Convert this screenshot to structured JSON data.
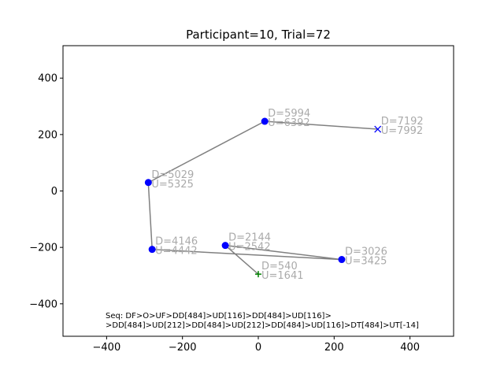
{
  "chart_data": {
    "type": "line",
    "title": "Participant=10, Trial=72",
    "xlim": [
      -515,
      515
    ],
    "ylim": [
      -515,
      515
    ],
    "xticks": [
      -400,
      -200,
      0,
      200,
      400
    ],
    "yticks": [
      -400,
      -200,
      0,
      200,
      400
    ],
    "grid": false,
    "colors": {
      "line": "#808080",
      "point": "#0000ff",
      "start": "#008000",
      "end": "#0000ff",
      "label": "#aaaaaa"
    },
    "start": {
      "x": 0,
      "y": -295,
      "marker": "+",
      "d_label": "D=540",
      "u_label": "U=1641"
    },
    "points": [
      {
        "x": -87,
        "y": -193,
        "d_label": "D=2144",
        "u_label": "U=2542"
      },
      {
        "x": 220,
        "y": -243,
        "d_label": "D=3026",
        "u_label": "U=3425"
      },
      {
        "x": -280,
        "y": -207,
        "d_label": "D=4146",
        "u_label": "U=4442"
      },
      {
        "x": -290,
        "y": 30,
        "d_label": "D=5029",
        "u_label": "U=5325"
      },
      {
        "x": 17,
        "y": 247,
        "d_label": "D=5994",
        "u_label": "U=6392"
      }
    ],
    "end": {
      "x": 315,
      "y": 219,
      "marker": "x",
      "d_label": "D=7192",
      "u_label": "U=7992"
    },
    "annotation_lines": [
      "Seq: DF>O>UF>DD[484]>UD[116]>DD[484]>UD[116]>",
      ">DD[484]>UD[212]>DD[484]>UD[212]>DD[484]>UD[116]>DT[484]>UT[-14]"
    ]
  }
}
